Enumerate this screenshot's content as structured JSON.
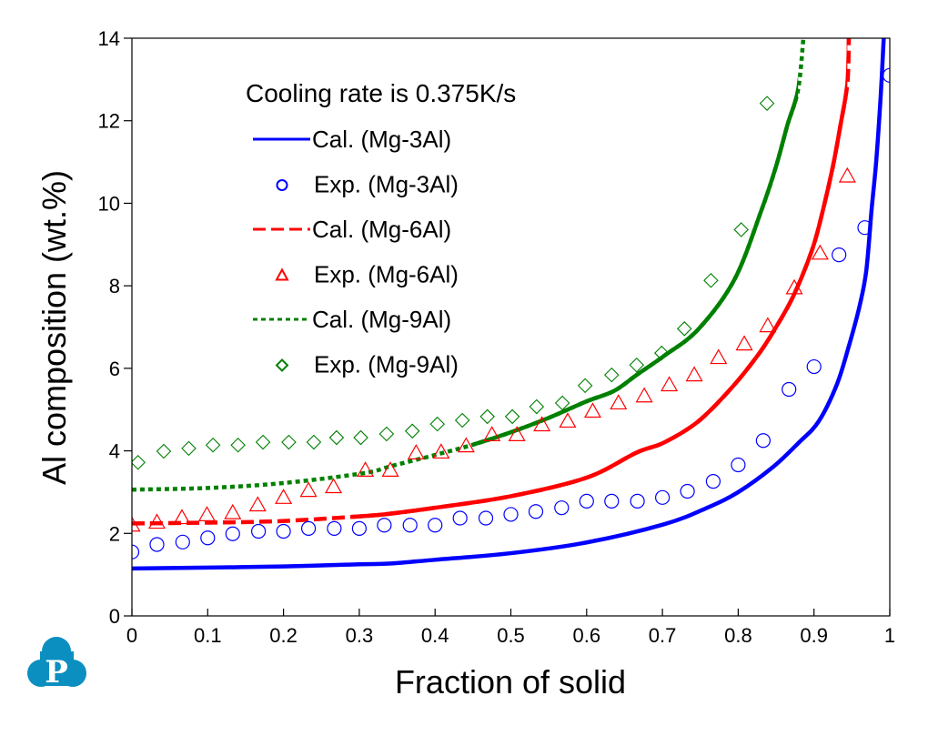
{
  "chart_data": {
    "type": "line",
    "title": "",
    "xlabel": "Fraction of solid",
    "ylabel": "Al composition (wt.%)",
    "xlim": [
      0,
      1
    ],
    "ylim": [
      0,
      14
    ],
    "grid": false,
    "x_ticks": [
      "0",
      "0.1",
      "0.2",
      "0.3",
      "0.4",
      "0.5",
      "0.6",
      "0.7",
      "0.8",
      "0.9",
      "1"
    ],
    "x_tick_values": [
      0,
      0.1,
      0.2,
      0.3,
      0.4,
      0.5,
      0.6,
      0.7,
      0.8,
      0.9,
      1
    ],
    "y_ticks": [
      "0",
      "2",
      "4",
      "6",
      "8",
      "10",
      "12",
      "14"
    ],
    "y_tick_values": [
      0,
      2,
      4,
      6,
      8,
      10,
      12,
      14
    ],
    "annotation": "Cooling rate is 0.375K/s",
    "legend_position": "top-left",
    "series": [
      {
        "name": "Cal. (Mg-3Al)",
        "kind": "line",
        "style": "solid",
        "color": "#0000ff",
        "x": [
          0,
          0.1,
          0.2,
          0.3,
          0.342,
          0.4,
          0.5,
          0.6,
          0.702,
          0.759,
          0.8,
          0.846,
          0.88,
          0.906,
          0.93,
          0.946,
          0.96,
          0.969,
          0.976,
          0.982,
          0.988,
          0.992
        ],
        "y": [
          1.15,
          1.17,
          1.2,
          1.25,
          1.27,
          1.36,
          1.52,
          1.78,
          2.22,
          2.62,
          3.0,
          3.61,
          4.2,
          4.71,
          5.6,
          6.54,
          7.5,
          8.37,
          9.85,
          11.0,
          12.6,
          14.0
        ]
      },
      {
        "name": "Exp. (Mg-3Al)",
        "kind": "scatter",
        "marker": "circle",
        "color": "#0000ff",
        "x": [
          0,
          0.033,
          0.067,
          0.1,
          0.133,
          0.167,
          0.2,
          0.233,
          0.267,
          0.3,
          0.333,
          0.367,
          0.4,
          0.433,
          0.467,
          0.5,
          0.533,
          0.567,
          0.6,
          0.633,
          0.667,
          0.7,
          0.733,
          0.767,
          0.8,
          0.833,
          0.867,
          0.9,
          0.933,
          0.967,
          1.0
        ],
        "y": [
          1.55,
          1.73,
          1.79,
          1.89,
          1.99,
          2.05,
          2.05,
          2.12,
          2.12,
          2.12,
          2.2,
          2.2,
          2.2,
          2.37,
          2.37,
          2.46,
          2.53,
          2.62,
          2.78,
          2.78,
          2.78,
          2.87,
          3.02,
          3.26,
          3.66,
          4.25,
          5.49,
          6.04,
          8.75,
          9.41,
          13.1
        ]
      },
      {
        "name": "Cal. (Mg-6Al)",
        "kind": "line",
        "style": "dashed",
        "color": "#ff0000",
        "x": [
          0,
          0.1,
          0.2,
          0.306,
          0.342,
          0.4,
          0.5,
          0.6,
          0.666,
          0.702,
          0.747,
          0.79,
          0.826,
          0.85,
          0.874,
          0.898,
          0.912,
          0.925,
          0.935,
          0.944,
          0.946
        ],
        "y": [
          2.24,
          2.26,
          2.3,
          2.42,
          2.48,
          2.62,
          2.9,
          3.35,
          3.96,
          4.2,
          4.71,
          5.5,
          6.32,
          7.0,
          7.8,
          8.9,
          9.85,
          10.9,
          11.9,
          12.9,
          14.0
        ],
        "solid_range": [
          0.29,
          0.944
        ]
      },
      {
        "name": "Exp. (Mg-6Al)",
        "kind": "scatter",
        "marker": "triangle",
        "color": "#ff0000",
        "x": [
          0,
          0.033,
          0.066,
          0.099,
          0.133,
          0.166,
          0.2,
          0.233,
          0.266,
          0.308,
          0.341,
          0.375,
          0.408,
          0.441,
          0.475,
          0.508,
          0.541,
          0.575,
          0.608,
          0.642,
          0.676,
          0.709,
          0.742,
          0.774,
          0.808,
          0.839,
          0.874,
          0.908,
          0.944
        ],
        "y": [
          2.2,
          2.27,
          2.38,
          2.45,
          2.5,
          2.69,
          2.87,
          3.04,
          3.13,
          3.53,
          3.53,
          3.95,
          3.97,
          4.12,
          4.39,
          4.39,
          4.63,
          4.72,
          4.96,
          5.16,
          5.33,
          5.6,
          5.84,
          6.26,
          6.59,
          7.03,
          7.95,
          8.79,
          10.66
        ]
      },
      {
        "name": "Cal. (Mg-9Al)",
        "kind": "line",
        "style": "dotted",
        "color": "#008000",
        "x": [
          0,
          0.1,
          0.2,
          0.306,
          0.342,
          0.4,
          0.45,
          0.5,
          0.55,
          0.6,
          0.636,
          0.666,
          0.702,
          0.747,
          0.795,
          0.831,
          0.85,
          0.865,
          0.879,
          0.886
        ],
        "y": [
          3.06,
          3.1,
          3.22,
          3.46,
          3.63,
          3.9,
          4.15,
          4.45,
          4.8,
          5.2,
          5.45,
          5.84,
          6.3,
          6.94,
          8.15,
          9.85,
          10.9,
          11.9,
          12.75,
          14.0
        ],
        "solid_range": [
          0.45,
          0.879
        ]
      },
      {
        "name": "Exp. (Mg-9Al)",
        "kind": "scatter",
        "marker": "diamond",
        "color": "#008000",
        "x": [
          0.008,
          0.042,
          0.075,
          0.107,
          0.14,
          0.173,
          0.207,
          0.24,
          0.27,
          0.302,
          0.336,
          0.37,
          0.403,
          0.436,
          0.469,
          0.502,
          0.534,
          0.568,
          0.598,
          0.633,
          0.666,
          0.699,
          0.729,
          0.764,
          0.804,
          0.838
        ],
        "y": [
          3.72,
          3.99,
          4.06,
          4.14,
          4.14,
          4.21,
          4.21,
          4.21,
          4.32,
          4.32,
          4.41,
          4.48,
          4.65,
          4.74,
          4.83,
          4.83,
          5.07,
          5.16,
          5.58,
          5.84,
          6.08,
          6.37,
          6.96,
          8.13,
          9.36,
          12.42
        ]
      }
    ]
  },
  "logo": {
    "letter": "P",
    "color": "#0b8fc0"
  }
}
